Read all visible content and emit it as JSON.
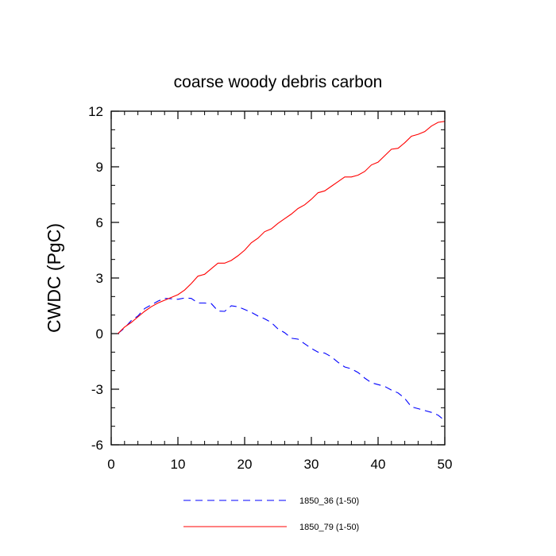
{
  "chart_data": {
    "type": "line",
    "title": "coarse woody debris carbon",
    "xlabel": "",
    "ylabel": "CWDC  (PgC)",
    "xlim": [
      0,
      50
    ],
    "ylim": [
      -6,
      12
    ],
    "xticks": [
      0,
      10,
      20,
      30,
      40,
      50
    ],
    "yticks": [
      -6,
      -3,
      0,
      3,
      6,
      9,
      12
    ],
    "grid": false,
    "legend_position": "bottom-center",
    "x": [
      1,
      2,
      3,
      4,
      5,
      6,
      7,
      8,
      9,
      10,
      11,
      12,
      13,
      14,
      15,
      16,
      17,
      18,
      19,
      20,
      21,
      22,
      23,
      24,
      25,
      26,
      27,
      28,
      29,
      30,
      31,
      32,
      33,
      34,
      35,
      36,
      37,
      38,
      39,
      40,
      41,
      42,
      43,
      44,
      45,
      46,
      47,
      48,
      49,
      50
    ],
    "series": [
      {
        "name": "1850_36 (1-50)",
        "color": "#0000ff",
        "dash": "dashed",
        "values": [
          0.0,
          0.3,
          0.7,
          0.95,
          1.35,
          1.55,
          1.75,
          1.9,
          1.88,
          1.85,
          1.92,
          1.9,
          1.65,
          1.65,
          1.62,
          1.22,
          1.2,
          1.5,
          1.45,
          1.3,
          1.15,
          0.95,
          0.8,
          0.6,
          0.25,
          0.05,
          -0.25,
          -0.3,
          -0.55,
          -0.8,
          -1.0,
          -1.05,
          -1.25,
          -1.55,
          -1.8,
          -1.9,
          -2.1,
          -2.4,
          -2.65,
          -2.75,
          -2.85,
          -3.05,
          -3.2,
          -3.5,
          -3.95,
          -4.05,
          -4.15,
          -4.25,
          -4.4,
          -4.7
        ]
      },
      {
        "name": "1850_79 (1-50)",
        "color": "#ff0000",
        "dash": "solid",
        "values": [
          0.0,
          0.35,
          0.6,
          0.9,
          1.2,
          1.45,
          1.65,
          1.8,
          1.95,
          2.1,
          2.35,
          2.7,
          3.1,
          3.2,
          3.5,
          3.8,
          3.8,
          3.95,
          4.2,
          4.5,
          4.9,
          5.15,
          5.5,
          5.65,
          5.95,
          6.2,
          6.45,
          6.75,
          6.95,
          7.25,
          7.6,
          7.7,
          7.95,
          8.2,
          8.45,
          8.45,
          8.55,
          8.75,
          9.1,
          9.25,
          9.6,
          9.95,
          10.0,
          10.3,
          10.65,
          10.75,
          10.9,
          11.2,
          11.4,
          11.45
        ]
      }
    ]
  }
}
